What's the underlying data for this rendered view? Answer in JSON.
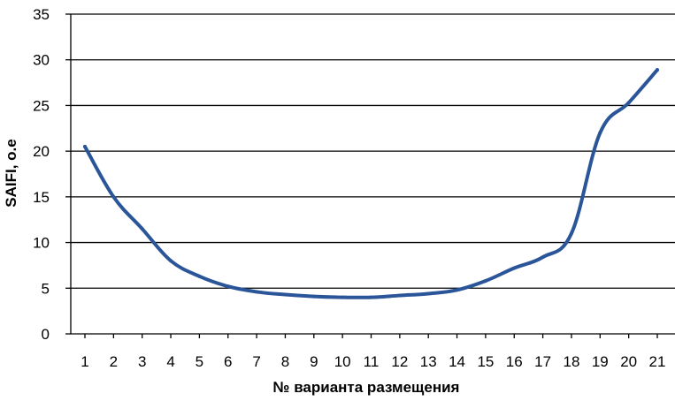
{
  "chart_data": {
    "type": "line",
    "xlabel": "№ варианта размещения",
    "ylabel": "SAIFI, о.е",
    "categories": [
      "1",
      "2",
      "3",
      "4",
      "5",
      "6",
      "7",
      "8",
      "9",
      "10",
      "11",
      "12",
      "13",
      "14",
      "15",
      "16",
      "17",
      "18",
      "19",
      "20",
      "21"
    ],
    "series": [
      {
        "values": [
          20.5,
          15.0,
          11.5,
          8.0,
          6.3,
          5.2,
          4.6,
          4.3,
          4.1,
          4.0,
          4.0,
          4.2,
          4.4,
          4.8,
          5.8,
          7.2,
          8.4,
          11.0,
          22.0,
          25.3,
          28.9
        ]
      }
    ],
    "ylim": [
      0,
      35
    ],
    "yticks": [
      "0",
      "5",
      "10",
      "15",
      "20",
      "25",
      "30",
      "35"
    ],
    "grid": "horizontal",
    "colors": {
      "line": "#2A5599",
      "grid": "#000000",
      "axis": "#000000"
    }
  }
}
